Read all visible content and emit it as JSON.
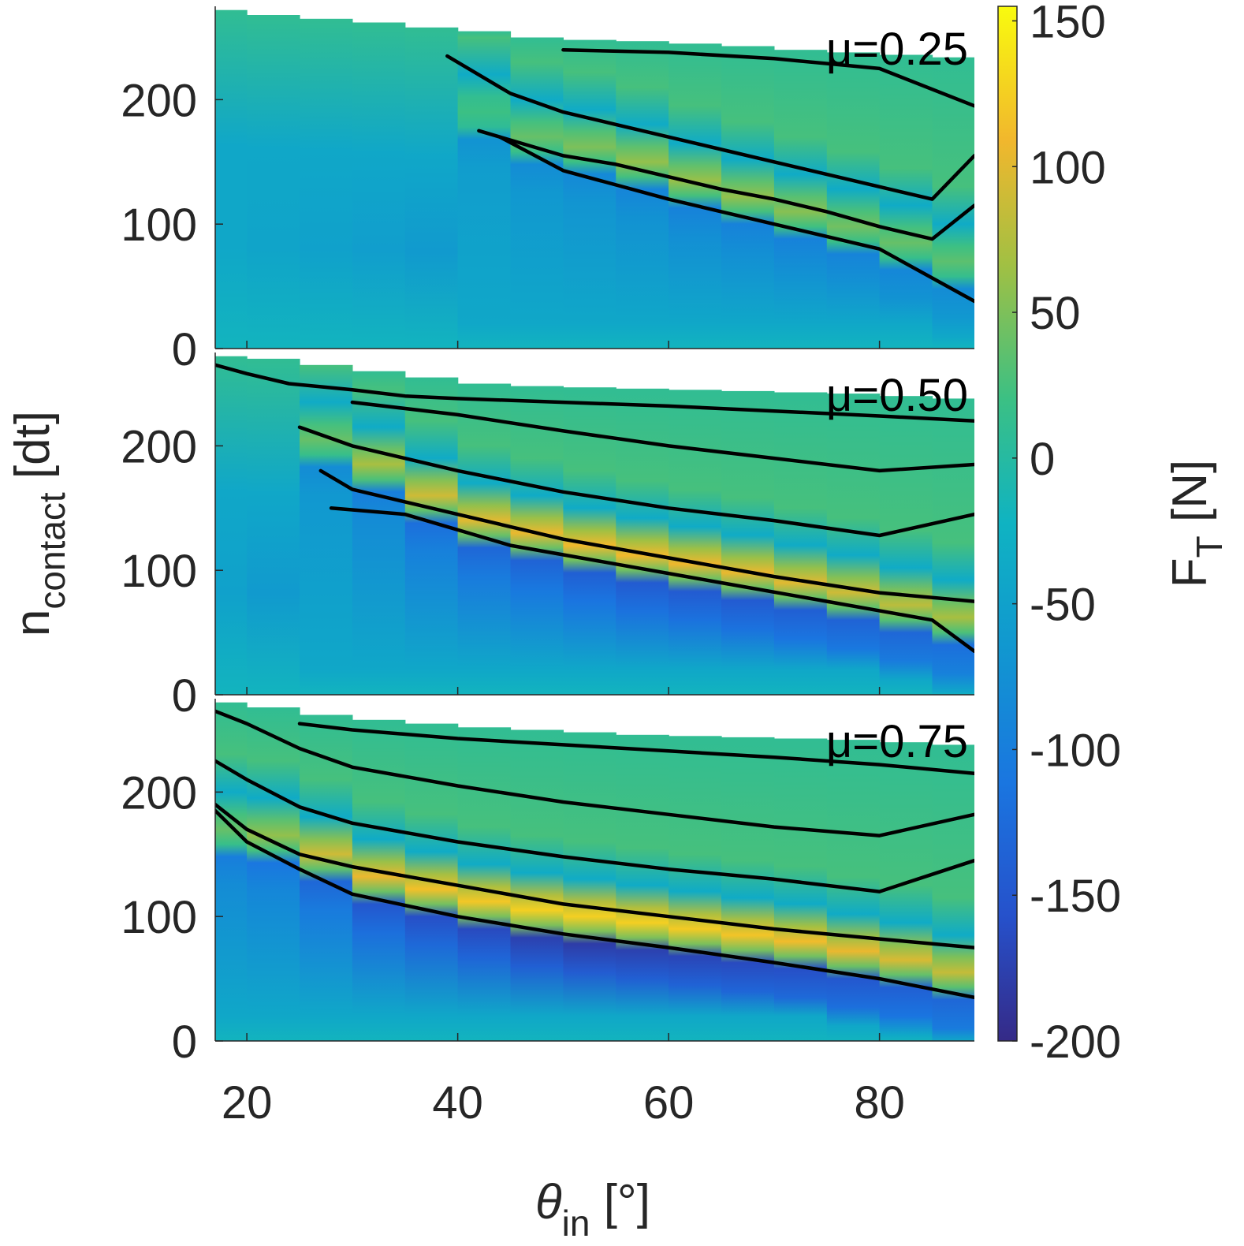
{
  "chart_data": {
    "type": "heatmap",
    "x_label": {
      "symbol": "θ",
      "subscript": "in",
      "unit": "[°]"
    },
    "y_label": {
      "symbol": "n",
      "subscript": "contact",
      "unit": "[dt]"
    },
    "colorbar_label": {
      "symbol": "F",
      "subscript": "T",
      "unit": "[N]"
    },
    "xlim": [
      17,
      89
    ],
    "ylim": [
      0,
      275
    ],
    "x_ticks": [
      "20",
      "40",
      "60",
      "80"
    ],
    "x_tick_values": [
      20,
      40,
      60,
      80
    ],
    "y_ticks": [
      "0",
      "100",
      "200"
    ],
    "y_tick_values": [
      0,
      100,
      200
    ],
    "colorbar": {
      "range": [
        -200,
        155
      ],
      "ticks": [
        "150",
        "100",
        "50",
        "0",
        "-50",
        "-100",
        "-150",
        "-200"
      ],
      "tick_values": [
        150,
        100,
        50,
        0,
        -50,
        -100,
        -150,
        -200
      ],
      "colormap": "parula"
    },
    "grid": false,
    "panels": [
      {
        "label": "μ=0.25",
        "columns_x": [
          17,
          20,
          25,
          30,
          35,
          40,
          45,
          50,
          55,
          60,
          65,
          70,
          75,
          80,
          85
        ],
        "top_boundary": [
          272,
          268,
          265,
          262,
          258,
          255,
          250,
          248,
          247,
          245,
          243,
          240,
          238,
          236,
          234
        ],
        "band_center": [
          0,
          0,
          0,
          0,
          0,
          190,
          170,
          162,
          150,
          135,
          122,
          110,
          98,
          85,
          70
        ],
        "peak_value": [
          0,
          0,
          0,
          0,
          0,
          20,
          40,
          50,
          60,
          62,
          60,
          55,
          45,
          40,
          35
        ],
        "trough_value": [
          -40,
          -45,
          -50,
          -55,
          -60,
          -70,
          -80,
          -85,
          -90,
          -95,
          -95,
          -95,
          -92,
          -88,
          -80
        ],
        "contours": [
          {
            "x": [
              50,
              60,
              70,
              80,
              89
            ],
            "y": [
              240,
              238,
              233,
              225,
              195
            ]
          },
          {
            "x": [
              39,
              45,
              50,
              55,
              60,
              65,
              70,
              75,
              80,
              85,
              89
            ],
            "y": [
              235,
              205,
              190,
              180,
              170,
              160,
              150,
              140,
              130,
              120,
              155
            ]
          },
          {
            "x": [
              42,
              50,
              55,
              60,
              65,
              70,
              75,
              80,
              85,
              89
            ],
            "y": [
              175,
              155,
              148,
              138,
              128,
              120,
              110,
              98,
              88,
              115
            ]
          },
          {
            "x": [
              44,
              50,
              60,
              70,
              80,
              89
            ],
            "y": [
              170,
              143,
              120,
              100,
              80,
              38
            ]
          }
        ]
      },
      {
        "label": "μ=0.50",
        "columns_x": [
          17,
          20,
          25,
          30,
          35,
          40,
          45,
          50,
          55,
          60,
          65,
          70,
          75,
          80,
          85
        ],
        "top_boundary": [
          272,
          270,
          265,
          260,
          255,
          250,
          248,
          247,
          246,
          245,
          244,
          243,
          242,
          240,
          238
        ],
        "band_center": [
          0,
          0,
          205,
          185,
          160,
          140,
          130,
          120,
          112,
          105,
          98,
          90,
          82,
          72,
          62
        ],
        "peak_value": [
          0,
          0,
          40,
          70,
          90,
          100,
          105,
          110,
          110,
          108,
          105,
          100,
          90,
          80,
          70
        ],
        "trough_value": [
          -50,
          -60,
          -80,
          -100,
          -120,
          -130,
          -135,
          -140,
          -145,
          -145,
          -145,
          -140,
          -135,
          -130,
          -120
        ],
        "contours": [
          {
            "x": [
              17,
              20,
              24,
              30,
              35,
              40,
              50,
              60,
              70,
              80,
              89
            ],
            "y": [
              265,
              258,
              250,
              245,
              240,
              238,
              235,
              232,
              228,
              224,
              220
            ]
          },
          {
            "x": [
              30,
              40,
              50,
              60,
              70,
              80,
              89
            ],
            "y": [
              235,
              225,
              212,
              200,
              190,
              180,
              185
            ]
          },
          {
            "x": [
              25,
              30,
              40,
              50,
              60,
              70,
              80,
              89
            ],
            "y": [
              215,
              200,
              180,
              163,
              150,
              140,
              128,
              145
            ]
          },
          {
            "x": [
              27,
              30,
              40,
              50,
              60,
              70,
              80,
              89
            ],
            "y": [
              180,
              165,
              145,
              125,
              110,
              95,
              82,
              75
            ]
          },
          {
            "x": [
              28,
              35,
              45,
              55,
              65,
              75,
              85,
              89
            ],
            "y": [
              150,
              145,
              120,
              105,
              90,
              75,
              60,
              35
            ]
          }
        ]
      },
      {
        "label": "μ=0.75",
        "columns_x": [
          17,
          20,
          25,
          30,
          35,
          40,
          45,
          50,
          55,
          60,
          65,
          70,
          75,
          80,
          85
        ],
        "top_boundary": [
          272,
          268,
          262,
          258,
          255,
          252,
          250,
          248,
          246,
          245,
          244,
          243,
          242,
          240,
          238
        ],
        "band_center": [
          170,
          165,
          150,
          132,
          122,
          112,
          105,
          100,
          95,
          90,
          85,
          80,
          72,
          65,
          55
        ],
        "peak_value": [
          40,
          60,
          90,
          105,
          115,
          120,
          125,
          125,
          125,
          122,
          118,
          112,
          105,
          95,
          85
        ],
        "trough_value": [
          -100,
          -110,
          -130,
          -150,
          -160,
          -165,
          -175,
          -180,
          -175,
          -170,
          -165,
          -160,
          -150,
          -140,
          -130
        ],
        "contours": [
          {
            "x": [
              25,
              30,
              40,
              50,
              60,
              70,
              80,
              89
            ],
            "y": [
              255,
              250,
              243,
              238,
              233,
              228,
              222,
              215
            ]
          },
          {
            "x": [
              17,
              20,
              25,
              30,
              40,
              50,
              60,
              70,
              80,
              89
            ],
            "y": [
              265,
              255,
              235,
              220,
              205,
              192,
              182,
              172,
              165,
              182
            ]
          },
          {
            "x": [
              17,
              20,
              25,
              30,
              40,
              50,
              60,
              70,
              80,
              89
            ],
            "y": [
              225,
              210,
              188,
              175,
              160,
              148,
              138,
              130,
              120,
              145
            ]
          },
          {
            "x": [
              17,
              20,
              25,
              30,
              40,
              50,
              60,
              70,
              80,
              89
            ],
            "y": [
              190,
              170,
              150,
              140,
              125,
              110,
              100,
              90,
              82,
              75
            ]
          },
          {
            "x": [
              17,
              20,
              25,
              30,
              40,
              50,
              60,
              70,
              80,
              89
            ],
            "y": [
              185,
              160,
              138,
              118,
              100,
              86,
              75,
              63,
              50,
              35
            ]
          }
        ]
      }
    ]
  }
}
